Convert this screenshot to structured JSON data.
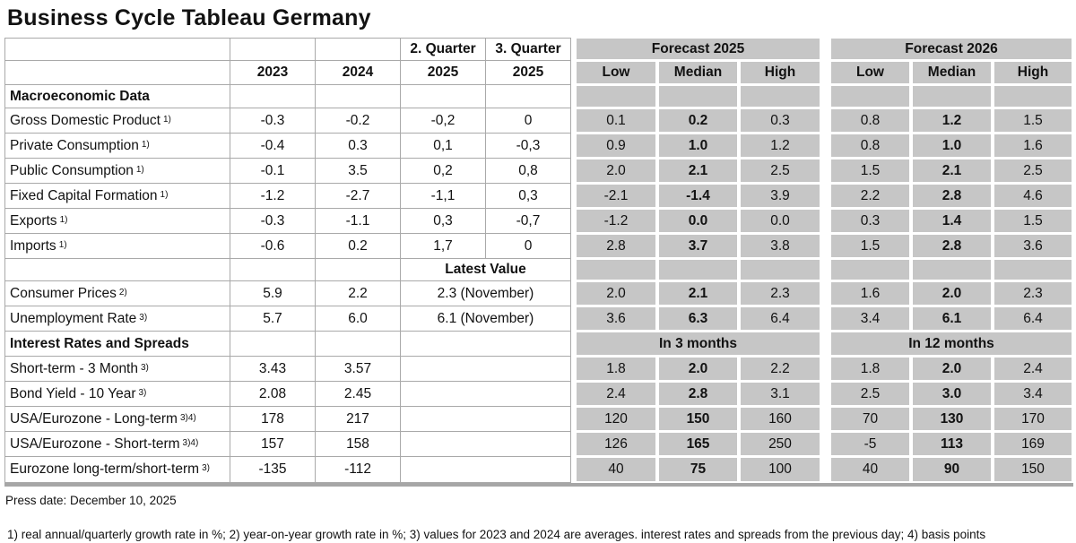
{
  "title": "Business Cycle Tableau Germany",
  "header": {
    "q2_label": "2. Quarter",
    "q3_label": "3. Quarter",
    "years": [
      "2023",
      "2024",
      "2025",
      "2025"
    ],
    "forecast_2025": "Forecast 2025",
    "forecast_2026": "Forecast 2026",
    "sub": [
      "Low",
      "Median",
      "High",
      "Low",
      "Median",
      "High"
    ]
  },
  "table": {
    "rows": [
      {
        "kind": "section",
        "label": "Macroeconomic Data"
      },
      {
        "kind": "data",
        "label": "Gross Domestic Product",
        "sup": "1)",
        "y2023": "-0.3",
        "y2024": "-0.2",
        "q2": "-0,2",
        "q3": "0",
        "forecast": [
          "0.1",
          "0.2",
          "0.3",
          "0.8",
          "1.2",
          "1.5"
        ]
      },
      {
        "kind": "data",
        "label": "Private Consumption",
        "sup": "1)",
        "y2023": "-0.4",
        "y2024": "0.3",
        "q2": "0,1",
        "q3": "-0,3",
        "forecast": [
          "0.9",
          "1.0",
          "1.2",
          "0.8",
          "1.0",
          "1.6"
        ]
      },
      {
        "kind": "data",
        "label": "Public Consumption",
        "sup": "1)",
        "y2023": "-0.1",
        "y2024": "3.5",
        "q2": "0,2",
        "q3": "0,8",
        "forecast": [
          "2.0",
          "2.1",
          "2.5",
          "1.5",
          "2.1",
          "2.5"
        ]
      },
      {
        "kind": "data",
        "label": "Fixed Capital Formation",
        "sup": "1)",
        "y2023": "-1.2",
        "y2024": "-2.7",
        "q2": "-1,1",
        "q3": "0,3",
        "forecast": [
          "-2.1",
          "-1.4",
          "3.9",
          "2.2",
          "2.8",
          "4.6"
        ]
      },
      {
        "kind": "data",
        "label": "Exports",
        "sup": "1)",
        "y2023": "-0.3",
        "y2024": "-1.1",
        "q2": "0,3",
        "q3": "-0,7",
        "forecast": [
          "-1.2",
          "0.0",
          "0.0",
          "0.3",
          "1.4",
          "1.5"
        ]
      },
      {
        "kind": "data",
        "label": "Imports",
        "sup": "1)",
        "y2023": "-0.6",
        "y2024": "0.2",
        "q2": "1,7",
        "q3": "0",
        "forecast": [
          "2.8",
          "3.7",
          "3.8",
          "1.5",
          "2.8",
          "3.6"
        ]
      },
      {
        "kind": "latest-header",
        "latest": "Latest Value"
      },
      {
        "kind": "latest",
        "label": "Consumer Prices",
        "sup": "2)",
        "y2023": "5.9",
        "y2024": "2.2",
        "latest": "2.3 (November)",
        "forecast": [
          "2.0",
          "2.1",
          "2.3",
          "1.6",
          "2.0",
          "2.3"
        ]
      },
      {
        "kind": "latest",
        "label": "Unemployment Rate",
        "sup": "3)",
        "y2023": "5.7",
        "y2024": "6.0",
        "latest": "6.1 (November)",
        "forecast": [
          "3.6",
          "6.3",
          "6.4",
          "3.4",
          "6.1",
          "6.4"
        ]
      },
      {
        "kind": "section-span",
        "label": "Interest Rates and Spreads",
        "span1": "In 3 months",
        "span2": "In 12 months"
      },
      {
        "kind": "rate",
        "label": "Short-term - 3 Month",
        "sup": "3)",
        "y2023": "3.43",
        "y2024": "3.57",
        "forecast": [
          "1.8",
          "2.0",
          "2.2",
          "1.8",
          "2.0",
          "2.4"
        ]
      },
      {
        "kind": "rate",
        "label": "Bond Yield - 10 Year",
        "sup": "3)",
        "y2023": "2.08",
        "y2024": "2.45",
        "forecast": [
          "2.4",
          "2.8",
          "3.1",
          "2.5",
          "3.0",
          "3.4"
        ]
      },
      {
        "kind": "rate",
        "label": "USA/Eurozone - Long-term",
        "sup": "3)4)",
        "y2023": "178",
        "y2024": "217",
        "forecast": [
          "120",
          "150",
          "160",
          "70",
          "130",
          "170"
        ]
      },
      {
        "kind": "rate",
        "label": "USA/Eurozone - Short-term",
        "sup": "3)4)",
        "y2023": "157",
        "y2024": "158",
        "forecast": [
          "126",
          "165",
          "250",
          "-5",
          "113",
          "169"
        ]
      },
      {
        "kind": "rate",
        "label": "Eurozone long-term/short-term",
        "sup": "3)",
        "y2023": "-135",
        "y2024": "-112",
        "forecast": [
          "40",
          "75",
          "100",
          "40",
          "90",
          "150"
        ]
      }
    ]
  },
  "footer": {
    "press_date": "Press date: December 10, 2025",
    "footnote": "1) real annual/quarterly growth rate in %; 2) year-on-year growth rate in %; 3) values for 2023 and 2024 are averages. interest rates and spreads from the previous day; 4) basis points"
  },
  "colors": {
    "forecast_cell_grey": "#c6c6c6",
    "gridline_grey": "#a9a9a9",
    "text": "#121212"
  }
}
